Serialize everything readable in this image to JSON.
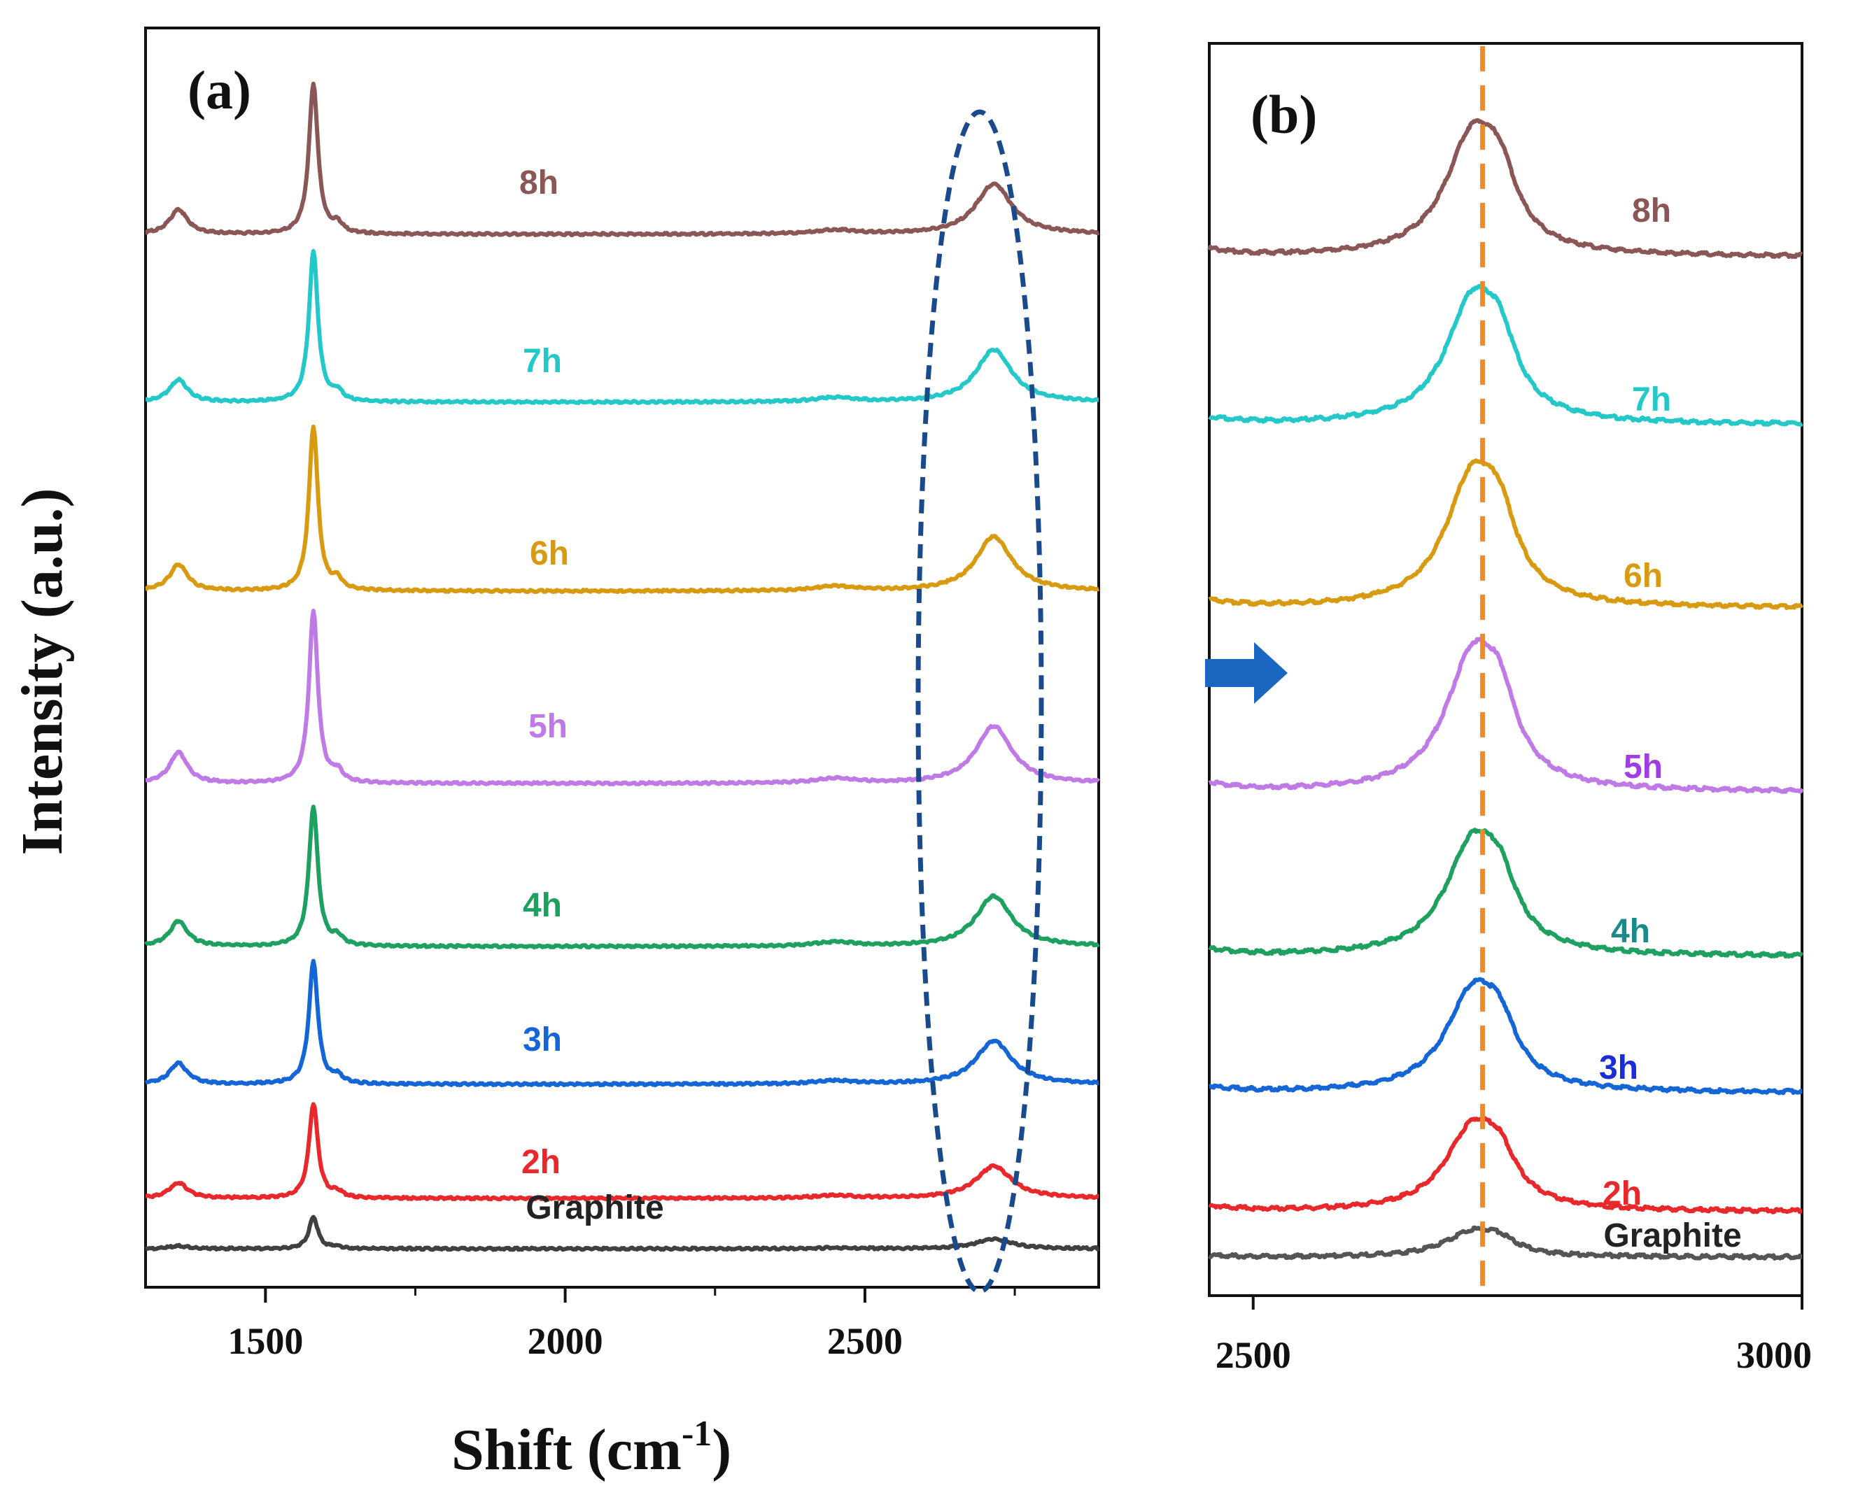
{
  "chart_data": [
    {
      "type": "line",
      "panel_label": "(a)",
      "xlabel_main": "Shift (cm",
      "xlabel_sup": "-1",
      "xlabel_tail": ")",
      "ylabel": "Intensity (a.u.)",
      "xlim": [
        1300,
        2890
      ],
      "x_ticks": [
        1500,
        2000,
        2500
      ],
      "x_minor_ticks": [
        1750,
        2250,
        2750
      ],
      "peaks": {
        "D": 1355,
        "G": 1580,
        "2D": 2715
      },
      "annotation": "dashed ellipse around the 2D band region (~2600-2800 cm-1)",
      "series": [
        {
          "name": "Graphite",
          "color": "#404040",
          "offset": 0,
          "g_height": 45,
          "d_height": 4,
          "twod_height": 14
        },
        {
          "name": "2h",
          "color": "#e8282a",
          "offset": 72,
          "g_height": 135,
          "d_height": 22,
          "twod_height": 46
        },
        {
          "name": "3h",
          "color": "#1466d6",
          "offset": 235,
          "g_height": 175,
          "d_height": 30,
          "twod_height": 62
        },
        {
          "name": "4h",
          "color": "#1ea060",
          "offset": 432,
          "g_height": 200,
          "d_height": 36,
          "twod_height": 72
        },
        {
          "name": "5h",
          "color": "#c07ae6",
          "offset": 665,
          "g_height": 245,
          "d_height": 44,
          "twod_height": 82
        },
        {
          "name": "6h",
          "color": "#d89a10",
          "offset": 940,
          "g_height": 235,
          "d_height": 38,
          "twod_height": 78
        },
        {
          "name": "7h",
          "color": "#25c8c8",
          "offset": 1210,
          "g_height": 215,
          "d_height": 32,
          "twod_height": 75
        },
        {
          "name": "8h",
          "color": "#8a5656",
          "offset": 1450,
          "g_height": 215,
          "d_height": 35,
          "twod_height": 72
        }
      ]
    },
    {
      "type": "line",
      "panel_label": "(b)",
      "xlim": [
        2460,
        3000
      ],
      "x_ticks": [
        2500,
        3000
      ],
      "reference_line_x": 2709,
      "series": [
        {
          "name": "Graphite",
          "label_color": "#222222",
          "color": "#555555",
          "offset": 0,
          "twod_height": 45,
          "shoulder": 2
        },
        {
          "name": "2h",
          "label_color": "#e8282a",
          "color": "#e8282a",
          "offset": 65,
          "twod_height": 148,
          "shoulder": 8
        },
        {
          "name": "3h",
          "label_color": "#1a2ed6",
          "color": "#1466d6",
          "offset": 235,
          "twod_height": 178,
          "shoulder": 8
        },
        {
          "name": "4h",
          "label_color": "#1a8a8a",
          "color": "#1ea060",
          "offset": 430,
          "twod_height": 200,
          "shoulder": 10
        },
        {
          "name": "5h",
          "label_color": "#a23de6",
          "color": "#c07ae6",
          "offset": 665,
          "twod_height": 240,
          "shoulder": 12
        },
        {
          "name": "6h",
          "label_color": "#d89a10",
          "color": "#d89a10",
          "offset": 928,
          "twod_height": 233,
          "shoulder": 10
        },
        {
          "name": "7h",
          "label_color": "#25c8c8",
          "color": "#25c8c8",
          "offset": 1190,
          "twod_height": 218,
          "shoulder": 10
        },
        {
          "name": "8h",
          "label_color": "#8a5656",
          "color": "#8a5656",
          "offset": 1430,
          "twod_height": 215,
          "shoulder": 10
        }
      ]
    }
  ]
}
